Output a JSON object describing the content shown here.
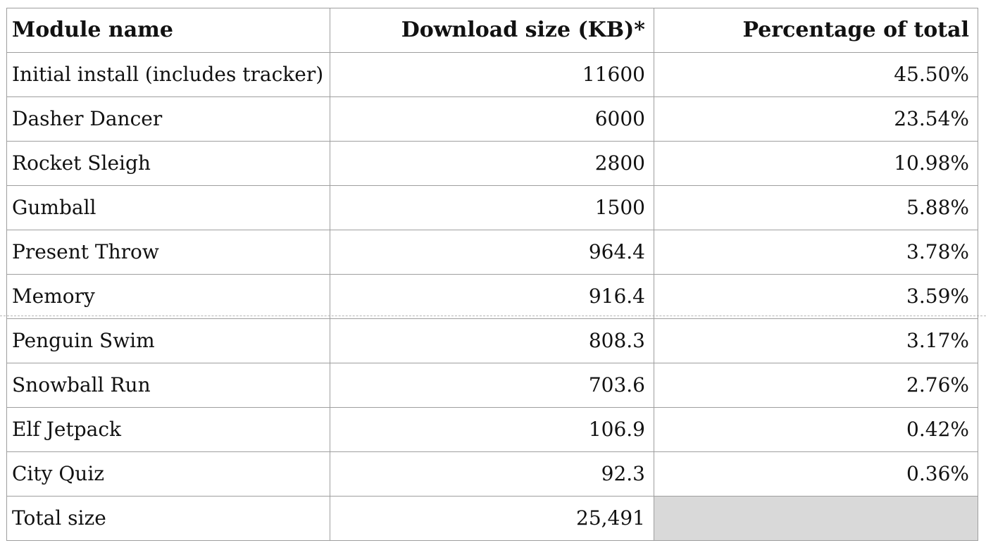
{
  "table": {
    "headers": {
      "module": "Module name",
      "download": "Download size (KB)*",
      "percent": "Percentage of total"
    },
    "rows": [
      {
        "module": "Initial install (includes tracker)",
        "download": "11600",
        "percent": "45.50%"
      },
      {
        "module": "Dasher Dancer",
        "download": "6000",
        "percent": "23.54%"
      },
      {
        "module": "Rocket Sleigh",
        "download": "2800",
        "percent": "10.98%"
      },
      {
        "module": "Gumball",
        "download": "1500",
        "percent": "5.88%"
      },
      {
        "module": "Present Throw",
        "download": "964.4",
        "percent": "3.78%"
      },
      {
        "module": "Memory",
        "download": "916.4",
        "percent": "3.59%"
      },
      {
        "module": "Penguin Swim",
        "download": "808.3",
        "percent": "3.17%"
      },
      {
        "module": "Snowball Run",
        "download": "703.6",
        "percent": "2.76%"
      },
      {
        "module": "Elf Jetpack",
        "download": "106.9",
        "percent": "0.42%"
      },
      {
        "module": "City Quiz",
        "download": "92.3",
        "percent": "0.36%"
      }
    ],
    "total": {
      "label": "Total size",
      "download": "25,491"
    }
  }
}
